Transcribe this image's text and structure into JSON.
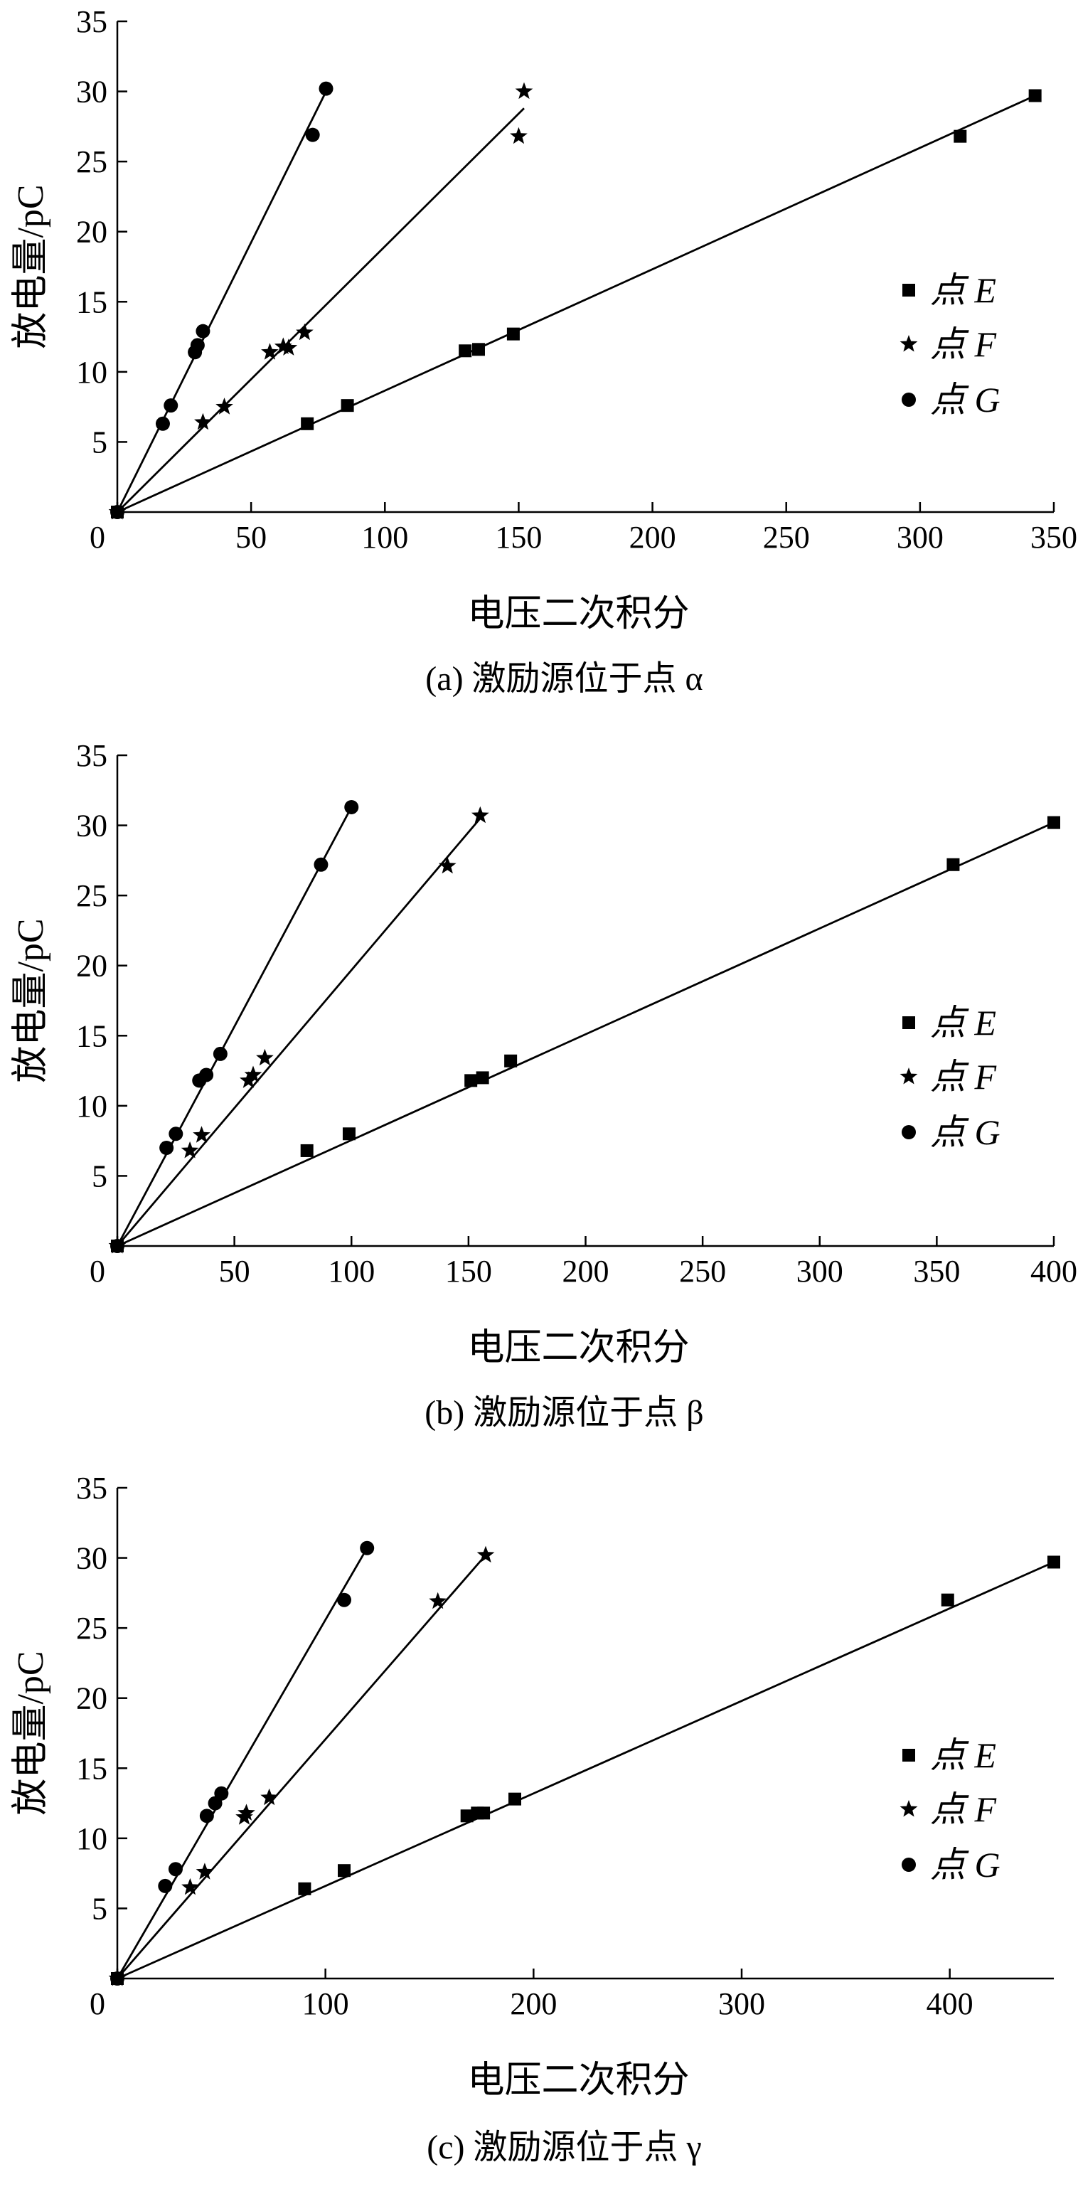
{
  "chart_data": [
    {
      "type": "scatter",
      "title": "",
      "caption": "(a)  激励源位于点 α",
      "xlabel": "电压二次积分",
      "ylabel": "放电量/pC",
      "xlim": [
        0,
        350
      ],
      "ylim": [
        0,
        35
      ],
      "x_ticks": [
        0,
        50,
        100,
        150,
        200,
        250,
        300,
        350
      ],
      "y_ticks": [
        5,
        10,
        15,
        20,
        25,
        30,
        35
      ],
      "x_tick_labels": [
        "0",
        "50",
        "100",
        "150",
        "200",
        "250",
        "300",
        "350"
      ],
      "y_tick_labels": [
        "5",
        "10",
        "15",
        "20",
        "25",
        "30",
        "35"
      ],
      "legend_position": "right",
      "grid": false,
      "series": [
        {
          "name": "点 E",
          "marker": "square",
          "x": [
            0,
            71,
            86,
            130,
            135,
            148,
            315,
            343
          ],
          "y": [
            0,
            6.3,
            7.6,
            11.5,
            11.6,
            12.7,
            26.8,
            29.7
          ],
          "fit": [
            [
              0,
              0
            ],
            [
              343,
              29.7
            ]
          ]
        },
        {
          "name": "点 F",
          "marker": "star",
          "x": [
            0,
            32,
            40,
            57,
            62,
            64,
            70,
            150,
            152
          ],
          "y": [
            0,
            6.4,
            7.5,
            11.4,
            11.8,
            11.7,
            12.8,
            26.8,
            30.0
          ],
          "fit": [
            [
              0,
              0
            ],
            [
              152,
              28.8
            ]
          ]
        },
        {
          "name": "点 G",
          "marker": "circle",
          "x": [
            0,
            17,
            20,
            29,
            30,
            32,
            73,
            78
          ],
          "y": [
            0,
            6.3,
            7.6,
            11.4,
            11.9,
            12.9,
            26.9,
            30.2
          ],
          "fit": [
            [
              0,
              0
            ],
            [
              78,
              30.0
            ]
          ]
        }
      ]
    },
    {
      "type": "scatter",
      "title": "",
      "caption": "(b)  激励源位于点 β",
      "xlabel": "电压二次积分",
      "ylabel": "放电量/pC",
      "xlim": [
        0,
        400
      ],
      "ylim": [
        0,
        35
      ],
      "x_ticks": [
        0,
        50,
        100,
        150,
        200,
        250,
        300,
        350,
        400
      ],
      "y_ticks": [
        5,
        10,
        15,
        20,
        25,
        30,
        35
      ],
      "x_tick_labels": [
        "0",
        "50",
        "100",
        "150",
        "200",
        "250",
        "300",
        "350",
        "400"
      ],
      "y_tick_labels": [
        "5",
        "10",
        "15",
        "20",
        "25",
        "30",
        "35"
      ],
      "legend_position": "right",
      "grid": false,
      "series": [
        {
          "name": "点 E",
          "marker": "square",
          "x": [
            0,
            81,
            99,
            151,
            156,
            168,
            357,
            400
          ],
          "y": [
            0,
            6.8,
            8.0,
            11.8,
            12.0,
            13.2,
            27.2,
            30.2
          ],
          "fit": [
            [
              0,
              0
            ],
            [
              400,
              30.2
            ]
          ]
        },
        {
          "name": "点 F",
          "marker": "star",
          "x": [
            0,
            31,
            36,
            56,
            58,
            63,
            141,
            155
          ],
          "y": [
            0,
            6.8,
            7.9,
            11.8,
            12.2,
            13.4,
            27.1,
            30.7
          ],
          "fit": [
            [
              0,
              0
            ],
            [
              155,
              30.5
            ]
          ]
        },
        {
          "name": "点 G",
          "marker": "circle",
          "x": [
            0,
            21,
            25,
            35,
            38,
            44,
            87,
            100
          ],
          "y": [
            0,
            7.0,
            8.0,
            11.8,
            12.2,
            13.7,
            27.2,
            31.3
          ],
          "fit": [
            [
              0,
              0
            ],
            [
              100,
              31.3
            ]
          ]
        }
      ]
    },
    {
      "type": "scatter",
      "title": "",
      "caption": "(c)  激励源位于点 γ",
      "xlabel": "电压二次积分",
      "ylabel": "放电量/pC",
      "xlim": [
        0,
        450
      ],
      "ylim": [
        0,
        35
      ],
      "x_ticks": [
        0,
        100,
        200,
        300,
        400
      ],
      "y_ticks": [
        5,
        10,
        15,
        20,
        25,
        30,
        35
      ],
      "x_tick_labels": [
        "0",
        "100",
        "200",
        "300",
        "400"
      ],
      "y_tick_labels": [
        "5",
        "10",
        "15",
        "20",
        "25",
        "30",
        "35"
      ],
      "legend_position": "right",
      "grid": false,
      "series": [
        {
          "name": "点 E",
          "marker": "square",
          "x": [
            0,
            90,
            109,
            168,
            173,
            176,
            191,
            399,
            450
          ],
          "y": [
            0,
            6.4,
            7.7,
            11.6,
            11.8,
            11.8,
            12.8,
            27.0,
            29.7
          ],
          "fit": [
            [
              0,
              0
            ],
            [
              450,
              29.7
            ]
          ]
        },
        {
          "name": "点 F",
          "marker": "star",
          "x": [
            0,
            35,
            42,
            61,
            62,
            73,
            154,
            177
          ],
          "y": [
            0,
            6.5,
            7.6,
            11.5,
            11.8,
            12.9,
            26.9,
            30.2
          ],
          "fit": [
            [
              0,
              0
            ],
            [
              177,
              30.2
            ]
          ]
        },
        {
          "name": "点 G",
          "marker": "circle",
          "x": [
            0,
            23,
            28,
            43,
            47,
            50,
            109,
            120
          ],
          "y": [
            0,
            6.6,
            7.8,
            11.6,
            12.5,
            13.2,
            27.0,
            30.7
          ],
          "fit": [
            [
              0,
              0
            ],
            [
              120,
              30.7
            ]
          ]
        }
      ]
    }
  ]
}
